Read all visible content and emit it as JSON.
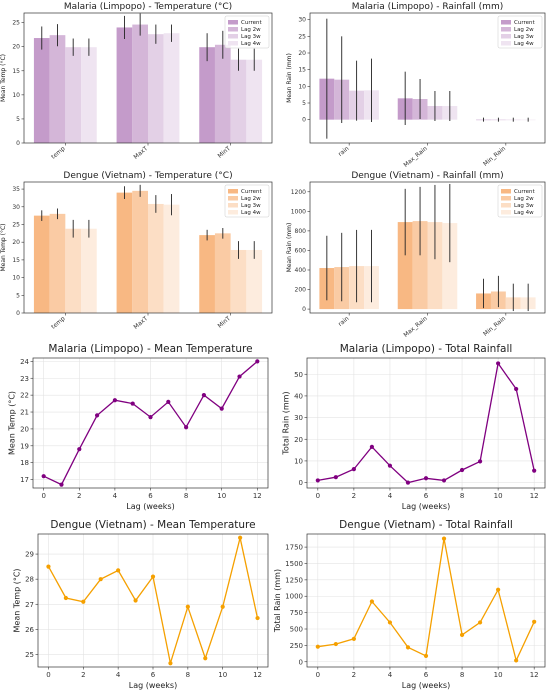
{
  "chart_data": [
    {
      "id": "p1",
      "type": "bar",
      "title": "Malaria (Limpopo) - Temperature (°C)",
      "xlabel": "",
      "ylabel": "Mean Temp (°C)",
      "categories": [
        "temp",
        "MaxT",
        "MinT"
      ],
      "ylim": [
        0,
        27
      ],
      "yticks": [
        0,
        5,
        10,
        15,
        20,
        25
      ],
      "legend_position": "top-right",
      "base_color": "#b07ab8",
      "series": [
        {
          "name": "Current",
          "values": [
            21.8,
            24.0,
            19.9
          ],
          "err": [
            2.4,
            2.4,
            2.9
          ]
        },
        {
          "name": "Lag 2w",
          "values": [
            22.4,
            24.6,
            20.4
          ],
          "err": [
            2.3,
            2.3,
            2.9
          ]
        },
        {
          "name": "Lag 3w",
          "values": [
            19.9,
            22.6,
            17.3
          ],
          "err": [
            1.8,
            2.0,
            2.3
          ]
        },
        {
          "name": "Lag 4w",
          "values": [
            19.9,
            22.8,
            17.3
          ],
          "err": [
            1.8,
            1.8,
            2.3
          ]
        }
      ]
    },
    {
      "id": "p2",
      "type": "bar",
      "title": "Malaria (Limpopo) - Rainfall (mm)",
      "xlabel": "",
      "ylabel": "Mean Rain (mm)",
      "categories": [
        "rain",
        "Max_Rain",
        "Min_Rain"
      ],
      "ylim": [
        -7,
        32
      ],
      "yticks": [
        0,
        5,
        10,
        15,
        20,
        25,
        30
      ],
      "legend_position": "top-right",
      "base_color": "#b07ab8",
      "series": [
        {
          "name": "Current",
          "values": [
            12.3,
            6.4,
            0.0
          ],
          "err": [
            18.0,
            8.0,
            0.6
          ]
        },
        {
          "name": "Lag 2w",
          "values": [
            12.0,
            6.2,
            0.0
          ],
          "err": [
            13.0,
            6.0,
            0.6
          ]
        },
        {
          "name": "Lag 3w",
          "values": [
            8.7,
            4.1,
            0.0
          ],
          "err": [
            9.0,
            4.5,
            0.6
          ]
        },
        {
          "name": "Lag 4w",
          "values": [
            8.8,
            4.1,
            0.0
          ],
          "err": [
            9.5,
            4.5,
            0.6
          ]
        }
      ]
    },
    {
      "id": "p3",
      "type": "bar",
      "title": "Dengue (Vietnam) - Temperature (°C)",
      "xlabel": "",
      "ylabel": "Mean Temp (°C)",
      "categories": [
        "temp",
        "MaxT",
        "MinT"
      ],
      "ylim": [
        0,
        37
      ],
      "yticks": [
        0,
        5,
        10,
        15,
        20,
        25,
        30,
        35
      ],
      "legend_position": "top-right",
      "base_color": "#f5a05a",
      "series": [
        {
          "name": "Current",
          "values": [
            27.5,
            34.0,
            22.0
          ],
          "err": [
            1.5,
            1.8,
            1.5
          ]
        },
        {
          "name": "Lag 2w",
          "values": [
            28.0,
            34.5,
            22.5
          ],
          "err": [
            1.5,
            1.7,
            1.5
          ]
        },
        {
          "name": "Lag 3w",
          "values": [
            23.8,
            30.8,
            17.8
          ],
          "err": [
            2.5,
            2.5,
            2.5
          ]
        },
        {
          "name": "Lag 4w",
          "values": [
            23.8,
            30.6,
            17.8
          ],
          "err": [
            2.5,
            3.0,
            2.5
          ]
        }
      ]
    },
    {
      "id": "p4",
      "type": "bar",
      "title": "Dengue (Vietnam) - Rainfall (mm)",
      "xlabel": "",
      "ylabel": "Mean Rain (mm)",
      "categories": [
        "rain",
        "Max_Rain",
        "Min_Rain"
      ],
      "ylim": [
        -40,
        1300
      ],
      "yticks": [
        0,
        200,
        400,
        600,
        800,
        1000,
        1200
      ],
      "legend_position": "top-right",
      "base_color": "#f5a05a",
      "series": [
        {
          "name": "Current",
          "values": [
            420,
            890,
            160
          ],
          "err": [
            330,
            340,
            150
          ]
        },
        {
          "name": "Lag 2w",
          "values": [
            430,
            900,
            180
          ],
          "err": [
            350,
            350,
            160
          ]
        },
        {
          "name": "Lag 3w",
          "values": [
            440,
            890,
            120
          ],
          "err": [
            370,
            380,
            140
          ]
        },
        {
          "name": "Lag 4w",
          "values": [
            440,
            880,
            120
          ],
          "err": [
            370,
            400,
            140
          ]
        }
      ]
    },
    {
      "id": "p5",
      "type": "line",
      "title": "Malaria (Limpopo) - Mean Temperature",
      "xlabel": "Lag (weeks)",
      "ylabel": "Mean Temp (°C)",
      "color": "#800080",
      "x": [
        0,
        1,
        2,
        3,
        4,
        5,
        6,
        7,
        8,
        9,
        10,
        11,
        12
      ],
      "y": [
        17.2,
        16.7,
        18.8,
        20.8,
        21.7,
        21.5,
        20.7,
        21.6,
        20.1,
        22.0,
        21.2,
        23.1,
        24.0
      ],
      "xlim": [
        -0.6,
        12.6
      ],
      "ylim": [
        16.5,
        24.2
      ],
      "xticks": [
        0,
        2,
        4,
        6,
        8,
        10,
        12
      ],
      "yticks": [
        17,
        18,
        19,
        20,
        21,
        22,
        23,
        24
      ],
      "grid": true
    },
    {
      "id": "p6",
      "type": "line",
      "title": "Malaria (Limpopo) - Total Rainfall",
      "xlabel": "Lag (weeks)",
      "ylabel": "Total Rain (mm)",
      "color": "#800080",
      "x": [
        0,
        1,
        2,
        3,
        4,
        5,
        6,
        7,
        8,
        9,
        10,
        11,
        12
      ],
      "y": [
        1.0,
        2.5,
        6.2,
        16.5,
        7.8,
        0.0,
        2.0,
        1.0,
        5.8,
        9.8,
        55.0,
        43.2,
        5.5
      ],
      "xlim": [
        -0.6,
        12.6
      ],
      "ylim": [
        -2.5,
        57.5
      ],
      "xticks": [
        0,
        2,
        4,
        6,
        8,
        10,
        12
      ],
      "yticks": [
        0,
        10,
        20,
        30,
        40,
        50
      ],
      "grid": true
    },
    {
      "id": "p7",
      "type": "line",
      "title": "Dengue (Vietnam) - Mean Temperature",
      "xlabel": "Lag (weeks)",
      "ylabel": "Mean Temp (°C)",
      "color": "#f5a000",
      "x": [
        0,
        1,
        2,
        3,
        4,
        5,
        6,
        7,
        8,
        9,
        10,
        11,
        12
      ],
      "y": [
        28.5,
        27.25,
        27.1,
        28.0,
        28.35,
        27.15,
        28.1,
        24.65,
        26.9,
        24.85,
        26.9,
        29.65,
        26.45
      ],
      "xlim": [
        -0.6,
        12.6
      ],
      "ylim": [
        24.5,
        29.8
      ],
      "xticks": [
        0,
        2,
        4,
        6,
        8,
        10,
        12
      ],
      "yticks": [
        25,
        26,
        27,
        28,
        29
      ],
      "grid": true
    },
    {
      "id": "p8",
      "type": "line",
      "title": "Dengue (Vietnam) - Total Rainfall",
      "xlabel": "Lag (weeks)",
      "ylabel": "Total Rain (mm)",
      "color": "#f5a000",
      "x": [
        0,
        1,
        2,
        3,
        4,
        5,
        6,
        7,
        8,
        9,
        10,
        11,
        12
      ],
      "y": [
        230,
        270,
        350,
        920,
        600,
        220,
        90,
        1880,
        410,
        600,
        1100,
        20,
        610
      ],
      "xlim": [
        -0.6,
        12.6
      ],
      "ylim": [
        -80,
        1950
      ],
      "xticks": [
        0,
        2,
        4,
        6,
        8,
        10,
        12
      ],
      "yticks": [
        0,
        250,
        500,
        750,
        1000,
        1250,
        1500,
        1750
      ],
      "grid": true
    }
  ]
}
